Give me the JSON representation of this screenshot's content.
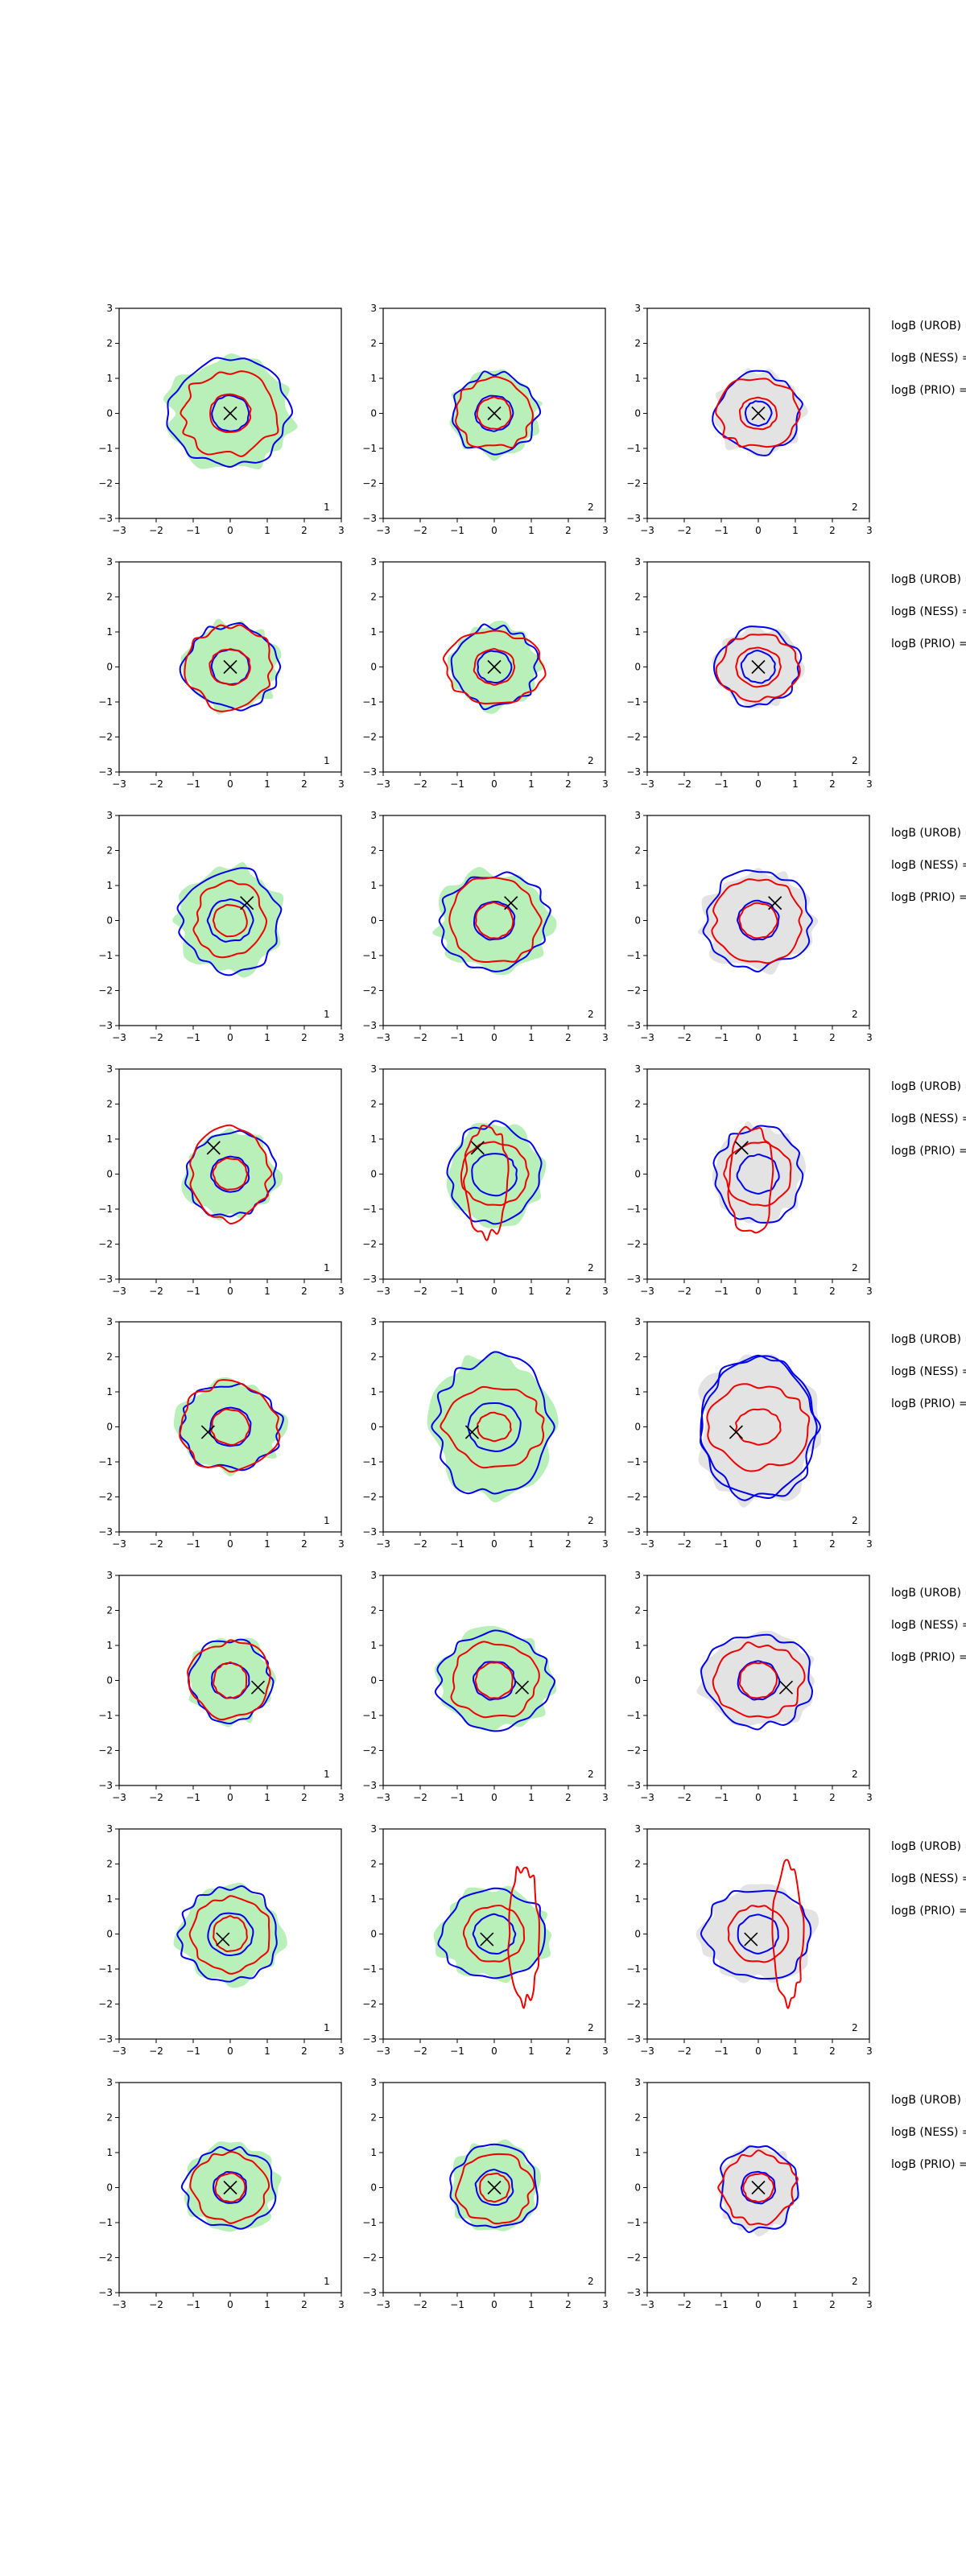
{
  "figure": {
    "side_labels": [
      "logB (UROB) =",
      "logB (NESS) =",
      "logB (PRIO) ="
    ]
  },
  "colors": {
    "fill_green": "#b9efb9",
    "fill_gray": "#e3e3e3",
    "blue": "#0000ee",
    "red": "#ee0000",
    "marker": "#000000",
    "axis": "#000000"
  },
  "chart_data": {
    "type": "contour",
    "rows": 8,
    "cols": 3,
    "xlim": [
      -3,
      3
    ],
    "ylim": [
      -3,
      3
    ],
    "xticks": [
      -3,
      -2,
      -1,
      0,
      1,
      2,
      3
    ],
    "yticks": [
      -3,
      -2,
      -1,
      0,
      1,
      2,
      3
    ],
    "grid": false,
    "legend": "none",
    "column_fill": [
      "green",
      "green",
      "gray"
    ],
    "column_index_labels": [
      "1",
      "2",
      "2"
    ],
    "true_points": [
      [
        0.0,
        0.0
      ],
      [
        0.0,
        0.0
      ],
      [
        0.45,
        0.5
      ],
      [
        -0.45,
        0.75
      ],
      [
        -0.6,
        -0.15
      ],
      [
        0.75,
        -0.2
      ],
      [
        -0.2,
        -0.15
      ],
      [
        0.0,
        0.0
      ]
    ],
    "contours": [
      {
        "blue": [
          [
            0.0,
            0.0,
            0.5,
            0.5
          ],
          [
            0.0,
            0.0,
            1.6,
            1.5
          ]
        ],
        "red": [
          [
            0.0,
            0.0,
            0.55,
            0.55
          ],
          [
            0.0,
            0.0,
            1.3,
            1.2
          ]
        ],
        "col2": {
          "blue": [
            [
              0.0,
              0.0,
              0.5,
              0.5
            ],
            [
              0.0,
              0.0,
              1.15,
              1.15
            ]
          ],
          "red": [
            [
              0.0,
              0.0,
              0.45,
              0.45
            ],
            [
              0.0,
              0.0,
              1.05,
              1.0
            ]
          ]
        },
        "col3": {
          "blue": [
            [
              0.0,
              0.0,
              0.35,
              0.35
            ],
            [
              0.0,
              0.0,
              1.15,
              1.15
            ]
          ],
          "red": [
            [
              0.0,
              0.0,
              0.5,
              0.45
            ],
            [
              0.0,
              0.0,
              1.1,
              1.0
            ]
          ]
        }
      },
      {
        "blue": [
          [
            0.0,
            0.0,
            0.5,
            0.5
          ],
          [
            0.0,
            0.0,
            1.25,
            1.2
          ]
        ],
        "red": [
          [
            0.0,
            0.0,
            0.55,
            0.5
          ],
          [
            0.0,
            0.0,
            1.15,
            1.2
          ]
        ],
        "col2": {
          "blue": [
            [
              0.0,
              0.0,
              0.45,
              0.45
            ],
            [
              0.0,
              0.0,
              1.15,
              1.15
            ]
          ],
          "red": [
            [
              0.0,
              0.0,
              0.55,
              0.5
            ],
            [
              0.0,
              0.0,
              1.3,
              1.0
            ]
          ]
        },
        "col3": {
          "blue": [
            [
              0.0,
              0.0,
              0.45,
              0.45
            ],
            [
              0.0,
              0.0,
              1.1,
              1.1
            ]
          ],
          "red": [
            [
              0.0,
              0.0,
              0.6,
              0.55
            ],
            [
              0.0,
              0.0,
              1.05,
              0.95
            ]
          ]
        }
      },
      {
        "blue": [
          [
            0.0,
            0.0,
            0.6,
            0.6
          ],
          [
            0.0,
            0.0,
            1.35,
            1.45
          ]
        ],
        "red": [
          [
            0.0,
            0.0,
            0.45,
            0.45
          ],
          [
            0.0,
            0.0,
            0.95,
            1.05
          ]
        ],
        "col2": {
          "blue": [
            [
              0.0,
              0.0,
              0.55,
              0.55
            ],
            [
              0.0,
              0.0,
              1.45,
              1.35
            ]
          ],
          "red": [
            [
              0.0,
              0.0,
              0.5,
              0.5
            ],
            [
              0.0,
              0.0,
              1.2,
              1.2
            ]
          ]
        },
        "col3": {
          "blue": [
            [
              0.0,
              0.0,
              0.55,
              0.55
            ],
            [
              0.0,
              0.0,
              1.45,
              1.35
            ]
          ],
          "red": [
            [
              0.0,
              0.0,
              0.5,
              0.5
            ],
            [
              0.0,
              0.0,
              1.2,
              1.2
            ]
          ]
        }
      },
      {
        "blue": [
          [
            0.0,
            0.0,
            0.5,
            0.5
          ],
          [
            0.0,
            0.0,
            1.2,
            1.2
          ]
        ],
        "red": [
          [
            0.0,
            0.0,
            0.45,
            0.45
          ],
          [
            0.0,
            0.0,
            1.05,
            1.3
          ]
        ],
        "col2": {
          "blue": [
            [
              0.0,
              0.0,
              0.6,
              0.6
            ],
            [
              0.0,
              0.0,
              1.2,
              1.4
            ]
          ],
          "red": [
            [
              0.0,
              0.0,
              0.9,
              0.9
            ],
            [
              -0.2,
              -0.2,
              0.6,
              1.55
            ]
          ]
        },
        "col3": {
          "blue": [
            [
              0.0,
              0.0,
              0.55,
              0.55
            ],
            [
              0.0,
              0.0,
              1.15,
              1.35
            ]
          ],
          "red": [
            [
              0.0,
              0.0,
              0.9,
              0.9
            ],
            [
              -0.2,
              -0.2,
              0.6,
              1.55
            ]
          ]
        }
      },
      {
        "blue": [
          [
            0.0,
            0.0,
            0.55,
            0.55
          ],
          [
            0.0,
            0.0,
            1.35,
            1.2
          ]
        ],
        "red": [
          [
            0.0,
            0.0,
            0.5,
            0.5
          ],
          [
            0.0,
            0.0,
            1.35,
            1.25
          ]
        ],
        "col2": {
          "blue": [
            [
              0.0,
              0.0,
              0.7,
              0.7
            ],
            [
              0.0,
              0.0,
              1.55,
              2.0
            ]
          ],
          "red": [
            [
              0.0,
              0.0,
              0.45,
              0.4
            ],
            [
              0.0,
              0.0,
              1.35,
              1.1
            ]
          ]
        },
        "col3": {
          "blue": [
            [
              0.0,
              0.0,
              1.55,
              2.0
            ],
            [
              0.0,
              0.0,
              1.55,
              2.0
            ]
          ],
          "red": [
            [
              0.0,
              0.0,
              0.6,
              0.5
            ],
            [
              0.0,
              0.0,
              1.35,
              1.2
            ]
          ]
        }
      },
      {
        "blue": [
          [
            0.0,
            0.0,
            0.5,
            0.5
          ],
          [
            0.0,
            0.0,
            1.1,
            1.15
          ]
        ],
        "red": [
          [
            0.0,
            0.0,
            0.45,
            0.5
          ],
          [
            0.0,
            0.0,
            1.1,
            1.1
          ]
        ],
        "col2": {
          "blue": [
            [
              0.0,
              0.0,
              0.55,
              0.55
            ],
            [
              0.0,
              0.0,
              1.5,
              1.35
            ]
          ],
          "red": [
            [
              0.0,
              0.0,
              0.5,
              0.5
            ],
            [
              0.0,
              0.0,
              1.2,
              1.05
            ]
          ]
        },
        "col3": {
          "blue": [
            [
              0.0,
              0.0,
              0.55,
              0.55
            ],
            [
              0.0,
              0.0,
              1.45,
              1.3
            ]
          ],
          "red": [
            [
              0.0,
              0.0,
              0.5,
              0.5
            ],
            [
              0.0,
              0.0,
              1.2,
              1.05
            ]
          ]
        }
      },
      {
        "blue": [
          [
            0.0,
            0.0,
            0.6,
            0.6
          ],
          [
            0.0,
            0.0,
            1.35,
            1.35
          ]
        ],
        "red": [
          [
            0.0,
            0.0,
            0.45,
            0.5
          ],
          [
            0.0,
            0.0,
            1.05,
            1.05
          ]
        ],
        "col2": {
          "blue": [
            [
              0.0,
              0.0,
              0.55,
              0.55
            ],
            [
              0.0,
              0.0,
              1.45,
              1.25
            ]
          ],
          "red": [
            [
              0.0,
              0.0,
              0.8,
              0.8
            ],
            [
              0.8,
              0.0,
              0.4,
              1.95
            ]
          ]
        },
        "col3": {
          "blue": [
            [
              0.0,
              0.0,
              0.55,
              0.55
            ],
            [
              0.0,
              0.0,
              1.45,
              1.25
            ]
          ],
          "red": [
            [
              0.0,
              0.0,
              0.8,
              0.8
            ],
            [
              0.8,
              0.0,
              0.4,
              1.95
            ]
          ]
        }
      },
      {
        "blue": [
          [
            0.0,
            0.0,
            0.45,
            0.45
          ],
          [
            0.0,
            0.0,
            1.2,
            1.15
          ]
        ],
        "red": [
          [
            0.0,
            0.0,
            0.4,
            0.4
          ],
          [
            0.0,
            0.0,
            1.0,
            1.0
          ]
        ],
        "col2": {
          "blue": [
            [
              0.0,
              0.0,
              0.5,
              0.5
            ],
            [
              0.0,
              0.0,
              1.15,
              1.2
            ]
          ],
          "red": [
            [
              0.0,
              0.0,
              0.4,
              0.4
            ],
            [
              0.0,
              0.0,
              1.0,
              1.0
            ]
          ]
        },
        "col3": {
          "blue": [
            [
              0.0,
              0.0,
              0.45,
              0.45
            ],
            [
              0.0,
              0.0,
              1.05,
              1.2
            ]
          ],
          "red": [
            [
              0.0,
              0.0,
              0.4,
              0.4
            ],
            [
              0.0,
              0.0,
              1.0,
              1.0
            ]
          ]
        }
      }
    ]
  }
}
